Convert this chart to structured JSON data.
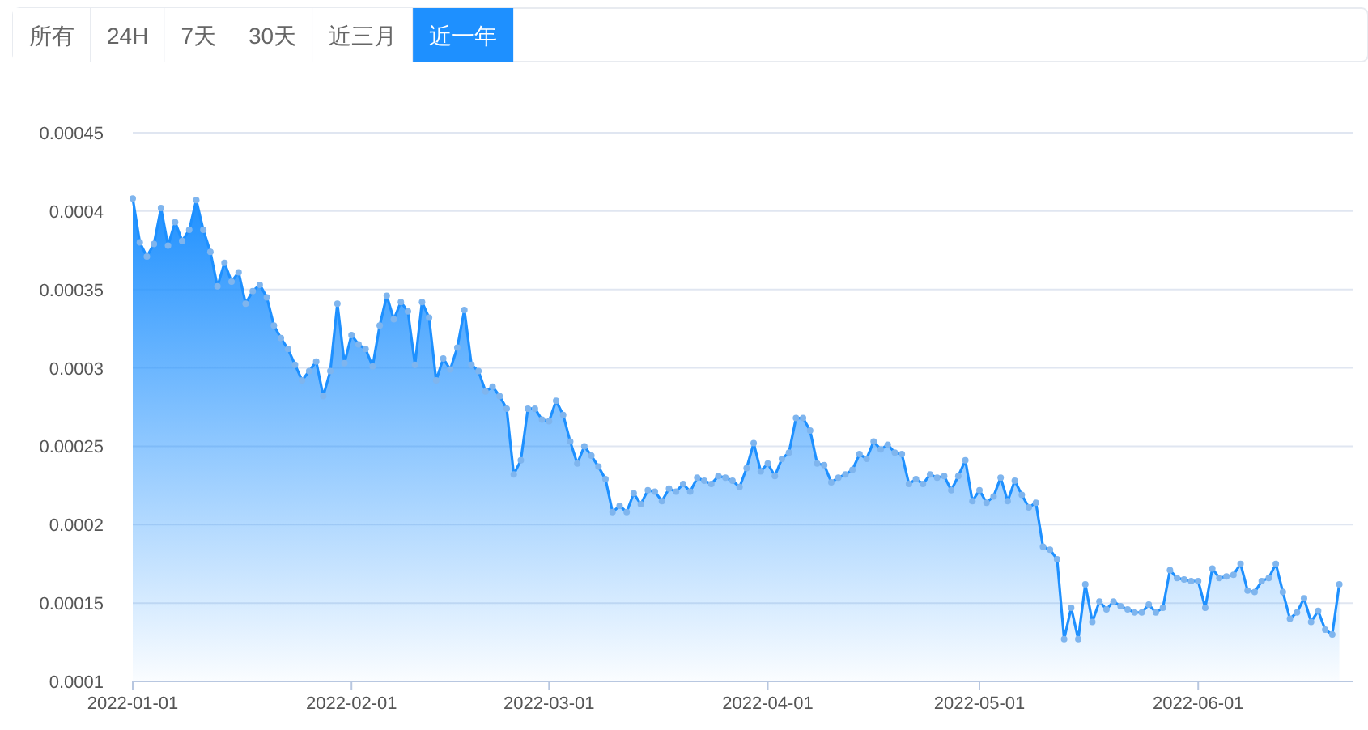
{
  "chart_data": {
    "type": "area",
    "annotations": [
      "所有",
      "24H",
      "7天",
      "30天",
      "近三月",
      "近一年"
    ],
    "x": [
      "2022-01-01",
      "2022-01-02",
      "2022-01-03",
      "2022-01-04",
      "2022-01-05",
      "2022-01-06",
      "2022-01-07",
      "2022-01-08",
      "2022-01-09",
      "2022-01-10",
      "2022-01-11",
      "2022-01-12",
      "2022-01-13",
      "2022-01-14",
      "2022-01-15",
      "2022-01-16",
      "2022-01-17",
      "2022-01-18",
      "2022-01-19",
      "2022-01-20",
      "2022-01-21",
      "2022-01-22",
      "2022-01-23",
      "2022-01-24",
      "2022-01-25",
      "2022-01-26",
      "2022-01-27",
      "2022-01-28",
      "2022-01-29",
      "2022-01-30",
      "2022-01-31",
      "2022-02-01",
      "2022-02-02",
      "2022-02-03",
      "2022-02-04",
      "2022-02-05",
      "2022-02-06",
      "2022-02-07",
      "2022-02-08",
      "2022-02-09",
      "2022-02-10",
      "2022-02-11",
      "2022-02-12",
      "2022-02-13",
      "2022-02-14",
      "2022-02-15",
      "2022-02-16",
      "2022-02-17",
      "2022-02-18",
      "2022-02-19",
      "2022-02-20",
      "2022-02-21",
      "2022-02-22",
      "2022-02-23",
      "2022-02-24",
      "2022-02-25",
      "2022-02-26",
      "2022-02-27",
      "2022-02-28",
      "2022-03-01",
      "2022-03-02",
      "2022-03-03",
      "2022-03-04",
      "2022-03-05",
      "2022-03-06",
      "2022-03-07",
      "2022-03-08",
      "2022-03-09",
      "2022-03-10",
      "2022-03-11",
      "2022-03-12",
      "2022-03-13",
      "2022-03-14",
      "2022-03-15",
      "2022-03-16",
      "2022-03-17",
      "2022-03-18",
      "2022-03-19",
      "2022-03-20",
      "2022-03-21",
      "2022-03-22",
      "2022-03-23",
      "2022-03-24",
      "2022-03-25",
      "2022-03-26",
      "2022-03-27",
      "2022-03-28",
      "2022-03-29",
      "2022-03-30",
      "2022-03-31",
      "2022-04-01",
      "2022-04-02",
      "2022-04-03",
      "2022-04-04",
      "2022-04-05",
      "2022-04-06",
      "2022-04-07",
      "2022-04-08",
      "2022-04-09",
      "2022-04-10",
      "2022-04-11",
      "2022-04-12",
      "2022-04-13",
      "2022-04-14",
      "2022-04-15",
      "2022-04-16",
      "2022-04-17",
      "2022-04-18",
      "2022-04-19",
      "2022-04-20",
      "2022-04-21",
      "2022-04-22",
      "2022-04-23",
      "2022-04-24",
      "2022-04-25",
      "2022-04-26",
      "2022-04-27",
      "2022-04-28",
      "2022-04-29",
      "2022-04-30",
      "2022-05-01",
      "2022-05-02",
      "2022-05-03",
      "2022-05-04",
      "2022-05-05",
      "2022-05-06",
      "2022-05-07",
      "2022-05-08",
      "2022-05-09",
      "2022-05-10",
      "2022-05-11",
      "2022-05-12",
      "2022-05-13",
      "2022-05-14",
      "2022-05-15",
      "2022-05-16",
      "2022-05-17",
      "2022-05-18",
      "2022-05-19",
      "2022-05-20",
      "2022-05-21",
      "2022-05-22",
      "2022-05-23",
      "2022-05-24",
      "2022-05-25",
      "2022-05-26",
      "2022-05-27",
      "2022-05-28",
      "2022-05-29",
      "2022-05-30",
      "2022-05-31",
      "2022-06-01",
      "2022-06-02",
      "2022-06-03",
      "2022-06-04",
      "2022-06-05",
      "2022-06-06",
      "2022-06-07",
      "2022-06-08",
      "2022-06-09",
      "2022-06-10",
      "2022-06-11",
      "2022-06-12",
      "2022-06-13",
      "2022-06-14",
      "2022-06-15",
      "2022-06-16",
      "2022-06-17",
      "2022-06-18",
      "2022-06-19",
      "2022-06-20",
      "2022-06-21"
    ],
    "series": [
      {
        "color": "#1e90ff",
        "values": [
          0.000408,
          0.00038,
          0.000371,
          0.000379,
          0.000402,
          0.000378,
          0.000393,
          0.000381,
          0.000388,
          0.000407,
          0.000388,
          0.000374,
          0.000352,
          0.000367,
          0.000355,
          0.000361,
          0.000341,
          0.000349,
          0.000353,
          0.000345,
          0.000327,
          0.000319,
          0.000312,
          0.000302,
          0.000292,
          0.000298,
          0.000304,
          0.000282,
          0.000298,
          0.000341,
          0.000303,
          0.000321,
          0.000315,
          0.000312,
          0.000301,
          0.000327,
          0.000346,
          0.000331,
          0.000342,
          0.000336,
          0.000302,
          0.000342,
          0.000332,
          0.000292,
          0.000306,
          0.000299,
          0.000313,
          0.000337,
          0.000302,
          0.000298,
          0.000285,
          0.000288,
          0.000282,
          0.000274,
          0.000232,
          0.000241,
          0.000274,
          0.000274,
          0.000267,
          0.000266,
          0.000279,
          0.00027,
          0.000253,
          0.000239,
          0.00025,
          0.000244,
          0.000237,
          0.000229,
          0.000208,
          0.000212,
          0.000208,
          0.00022,
          0.000213,
          0.000222,
          0.000221,
          0.000215,
          0.000223,
          0.000221,
          0.000226,
          0.000221,
          0.00023,
          0.000228,
          0.000226,
          0.000231,
          0.00023,
          0.000228,
          0.000224,
          0.000236,
          0.000252,
          0.000234,
          0.000239,
          0.000231,
          0.000242,
          0.000246,
          0.000268,
          0.000268,
          0.00026,
          0.000239,
          0.000238,
          0.000227,
          0.00023,
          0.000232,
          0.000235,
          0.000245,
          0.000242,
          0.000253,
          0.000248,
          0.000251,
          0.000246,
          0.000245,
          0.000226,
          0.000229,
          0.000226,
          0.000232,
          0.00023,
          0.000231,
          0.000222,
          0.000231,
          0.000241,
          0.000215,
          0.000222,
          0.000214,
          0.000218,
          0.00023,
          0.000215,
          0.000228,
          0.000219,
          0.000211,
          0.000214,
          0.000186,
          0.000184,
          0.000178,
          0.000127,
          0.000147,
          0.000127,
          0.000162,
          0.000138,
          0.000151,
          0.000146,
          0.000151,
          0.000148,
          0.000146,
          0.000144,
          0.000144,
          0.000149,
          0.000144,
          0.000147,
          0.000171,
          0.000166,
          0.000165,
          0.000164,
          0.000164,
          0.000147,
          0.000172,
          0.000166,
          0.000167,
          0.000168,
          0.000175,
          0.000158,
          0.000157,
          0.000164,
          0.000166,
          0.000175,
          0.000157,
          0.00014,
          0.000144,
          0.000153,
          0.000138,
          0.000145,
          0.000133,
          0.00013,
          0.000162
        ]
      }
    ],
    "xlim": [
      "2022-01-01",
      "2022-06-23"
    ],
    "xticks": [
      "2022-01-01",
      "2022-02-01",
      "2022-03-01",
      "2022-04-01",
      "2022-05-01",
      "2022-06-01"
    ],
    "ylim": [
      0.0001,
      0.00045
    ],
    "yticks": [
      0.0001,
      0.00015,
      0.0002,
      0.00025,
      0.0003,
      0.00035,
      0.0004,
      0.00045
    ],
    "grid": "y",
    "marker": "circle",
    "line_style": "solid"
  }
}
